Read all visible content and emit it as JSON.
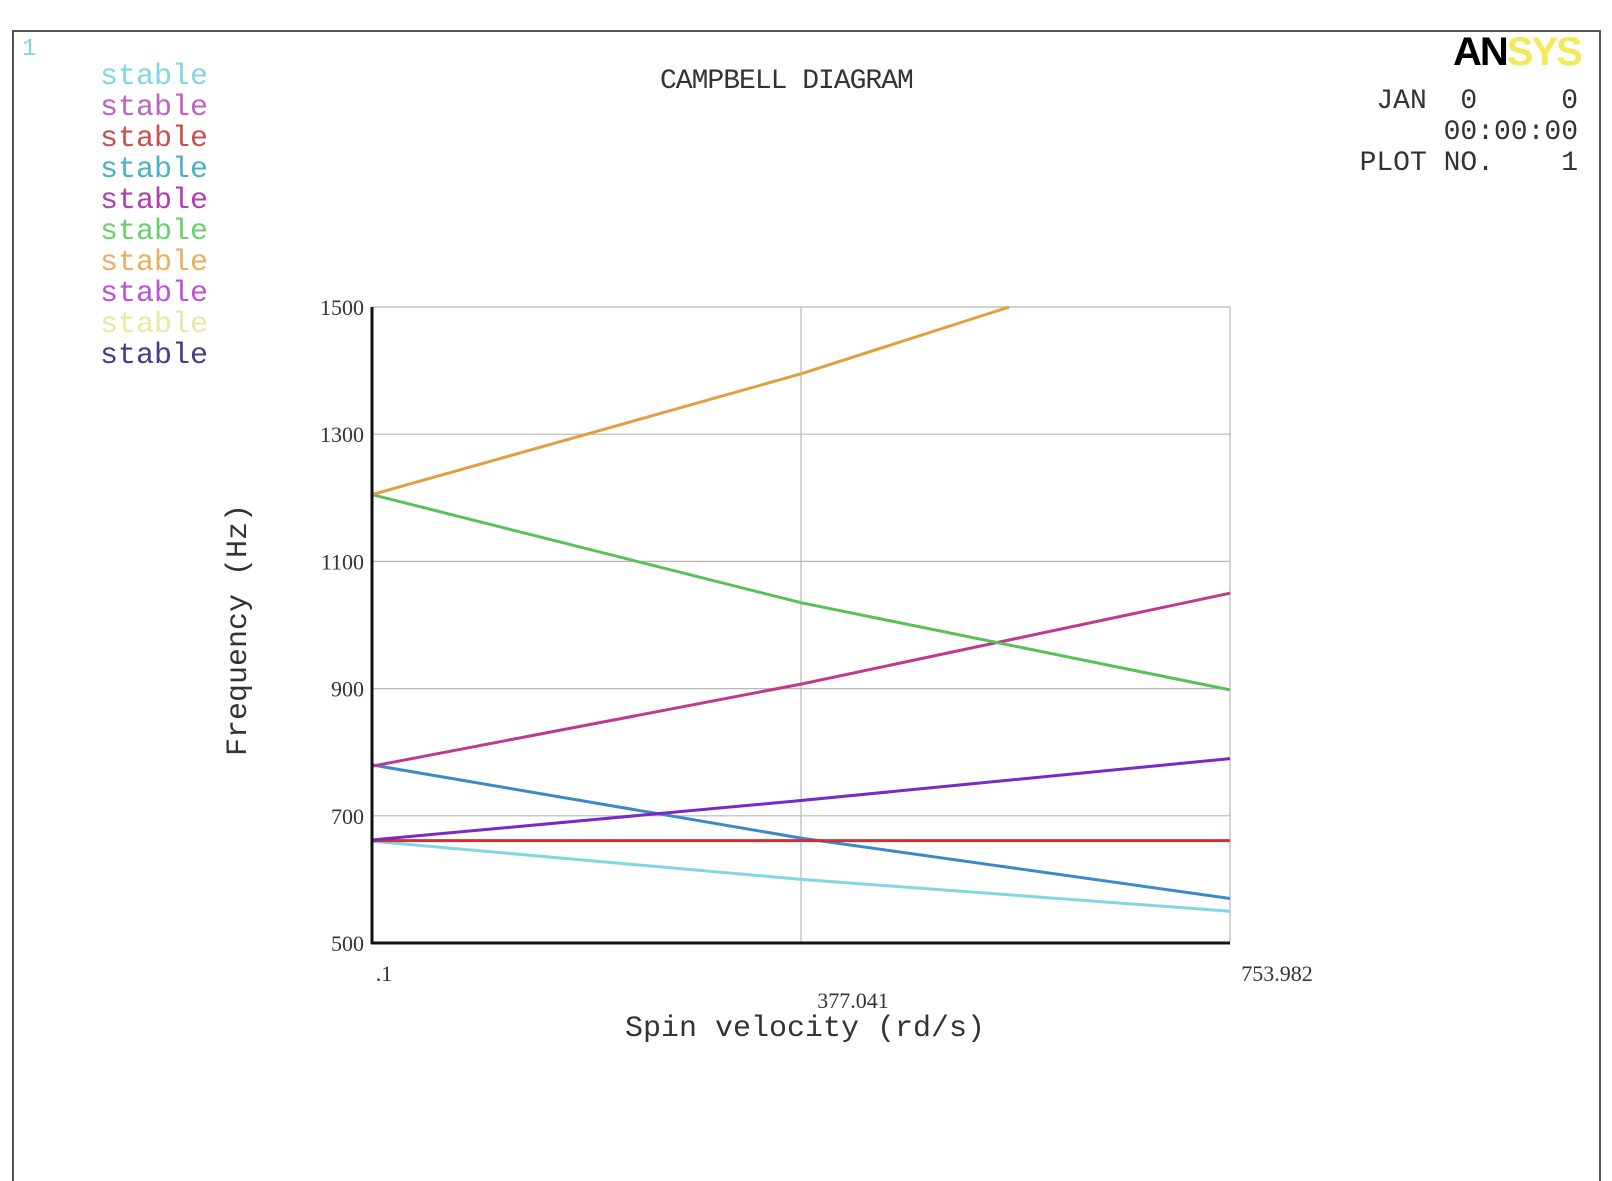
{
  "window": {
    "plot_index": "1",
    "brand_an": "AN",
    "brand_sys": "SYS",
    "date_line": "JAN  0     0",
    "time_line": "00:00:00",
    "plot_no_line": "PLOT NO.    1"
  },
  "legend": [
    {
      "label": "stable",
      "color": "#7fd8e0"
    },
    {
      "label": "stable",
      "color": "#c060c8"
    },
    {
      "label": "stable",
      "color": "#c85050"
    },
    {
      "label": "stable",
      "color": "#4ab0c8"
    },
    {
      "label": "stable",
      "color": "#b040b0"
    },
    {
      "label": "stable",
      "color": "#6ad06a"
    },
    {
      "label": "stable",
      "color": "#e8b060"
    },
    {
      "label": "stable",
      "color": "#c050d8"
    },
    {
      "label": "stable",
      "color": "#e8e8a0"
    },
    {
      "label": "stable",
      "color": "#404088"
    }
  ],
  "chart_data": {
    "type": "line",
    "title": "CAMPBELL DIAGRAM",
    "xlabel": "Spin velocity (rd/s)",
    "ylabel": "Frequency (Hz)",
    "xlim": [
      0.1,
      753.982
    ],
    "ylim": [
      500,
      1500
    ],
    "x_ticks": [
      ".1",
      "377.041",
      "753.982"
    ],
    "y_ticks": [
      "500",
      "700",
      "900",
      "1100",
      "1300",
      "1500"
    ],
    "y_tick_values": [
      500,
      700,
      900,
      1100,
      1300,
      1500
    ],
    "grid": true,
    "series": [
      {
        "color": "#7fd8e0",
        "x": [
          0.1,
          377.041,
          753.982
        ],
        "y": [
          660,
          600,
          550
        ]
      },
      {
        "color": "#3a8ac8",
        "x": [
          0.1,
          377.041,
          753.982
        ],
        "y": [
          780,
          665,
          570
        ]
      },
      {
        "color": "#d03030",
        "x": [
          0.1,
          377.041,
          753.982
        ],
        "y": [
          661,
          661,
          661
        ]
      },
      {
        "color": "#7a28c8",
        "x": [
          0.1,
          377.041,
          753.982
        ],
        "y": [
          662,
          724,
          790
        ]
      },
      {
        "color": "#c03890",
        "x": [
          0.1,
          377.041,
          753.982
        ],
        "y": [
          778,
          907,
          1050
        ]
      },
      {
        "color": "#58c058",
        "x": [
          0.1,
          377.041,
          753.982
        ],
        "y": [
          1205,
          1035,
          898
        ]
      },
      {
        "color": "#e0a040",
        "x": [
          0.1,
          377.041,
          560
        ],
        "y": [
          1205,
          1395,
          1500
        ]
      }
    ]
  }
}
